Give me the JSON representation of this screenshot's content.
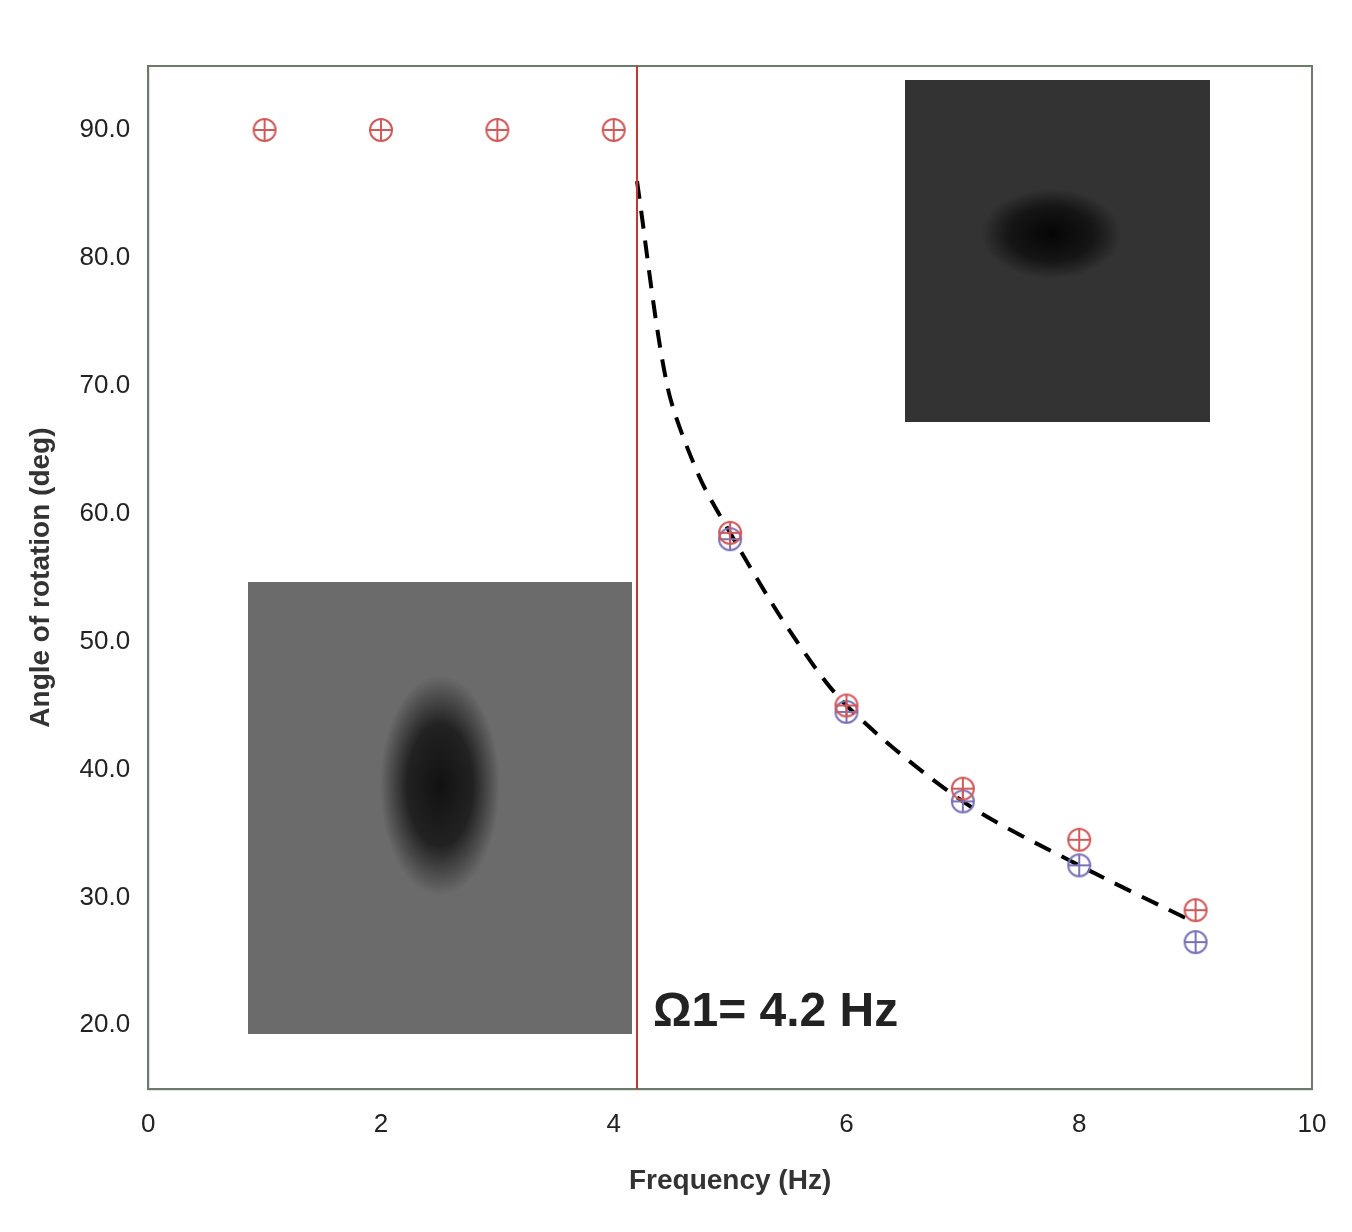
{
  "chart_data": {
    "type": "scatter",
    "x_label": "Frequency (Hz)",
    "y_label": "Angle of rotation (deg)",
    "xlim": [
      0,
      10
    ],
    "xticks": [
      0,
      2,
      4,
      6,
      8,
      10
    ],
    "ylim": [
      15,
      95
    ],
    "yticks": [
      {
        "value": 20,
        "label": "20.0"
      },
      {
        "value": 30,
        "label": "30.0"
      },
      {
        "value": 40,
        "label": "40.0"
      },
      {
        "value": 50,
        "label": "50.0"
      },
      {
        "value": 60,
        "label": "60.0"
      },
      {
        "value": 70,
        "label": "70.0"
      },
      {
        "value": 80,
        "label": "80.0"
      },
      {
        "value": 90,
        "label": "90.0"
      }
    ],
    "grid": false,
    "series": [
      {
        "color": "#d05a5a",
        "marker": "circle-cross",
        "x": [
          1,
          2,
          3,
          4,
          5,
          6,
          7,
          8,
          9
        ],
        "values": [
          90,
          90,
          90,
          90,
          58.5,
          45,
          38.5,
          34.5,
          29
        ]
      },
      {
        "color": "#7a72b6",
        "marker": "circle-cross",
        "x": [
          5,
          6,
          7,
          8,
          9
        ],
        "values": [
          58,
          44.5,
          37.5,
          32.5,
          26.5
        ]
      },
      {
        "type": "line",
        "line_style": "dashed",
        "color": "#000000",
        "x": [
          4.2,
          4.46,
          4.73,
          5,
          5.5,
          6,
          7,
          8,
          9
        ],
        "values": [
          86,
          70,
          63,
          58.5,
          51,
          45,
          37.5,
          32.5,
          28
        ]
      }
    ],
    "annotations": [
      {
        "text": "Ω1= 4.2 Hz",
        "x": 4.2,
        "color": "#c0392b"
      }
    ]
  }
}
